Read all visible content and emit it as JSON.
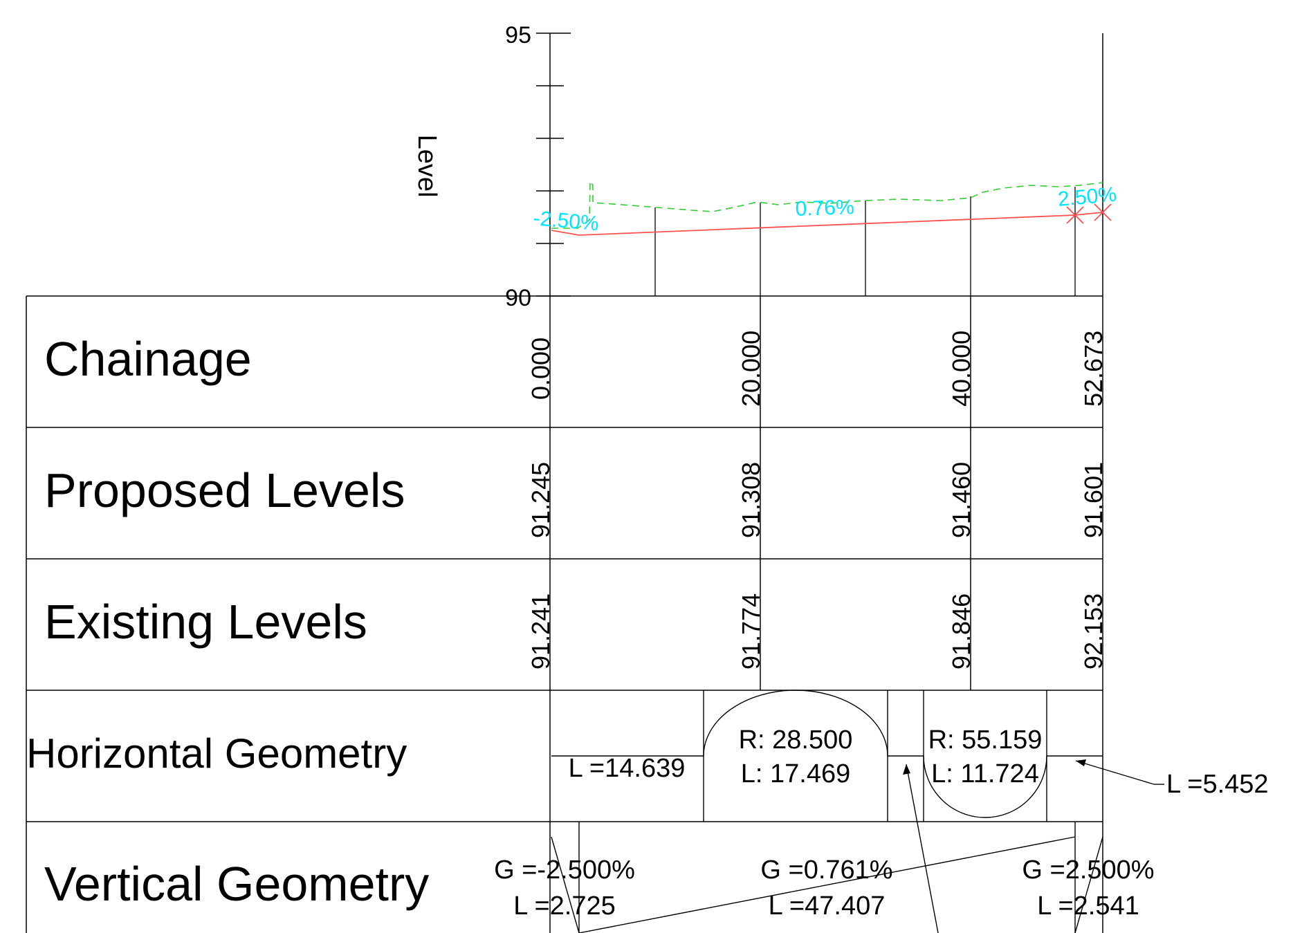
{
  "axis": {
    "label": "Level",
    "tick_top": "95",
    "tick_bottom": "90"
  },
  "profile": {
    "grade_labels": [
      "-2.50%",
      "0.76%",
      "2.50%"
    ],
    "colors": {
      "proposed": "#ff5050",
      "existing": "#33cc33",
      "grade_text": "#00e5ff"
    }
  },
  "rows": {
    "chainage": {
      "title": "Chainage",
      "values": [
        "0.000",
        "20.000",
        "40.000",
        "52.673"
      ]
    },
    "proposed": {
      "title": "Proposed Levels",
      "values": [
        "91.245",
        "91.308",
        "91.460",
        "91.601"
      ]
    },
    "existing": {
      "title": "Existing Levels",
      "values": [
        "91.241",
        "91.774",
        "91.846",
        "92.153"
      ]
    },
    "horizontal": {
      "title": "Horizontal Geometry",
      "line1": "L =14.639",
      "curve1_r": "R: 28.500",
      "curve1_l": "L: 17.469",
      "curve2_r": "R: 55.159",
      "curve2_l": "L: 11.724",
      "line3": "L =5.452"
    },
    "vertical": {
      "title": "Vertical Geometry",
      "g1": "G =-2.500%",
      "l1": "L =2.725",
      "g2": "G =0.761%",
      "l2": "L =47.407",
      "g3": "G =2.500%",
      "l3": "L =2.541"
    }
  }
}
